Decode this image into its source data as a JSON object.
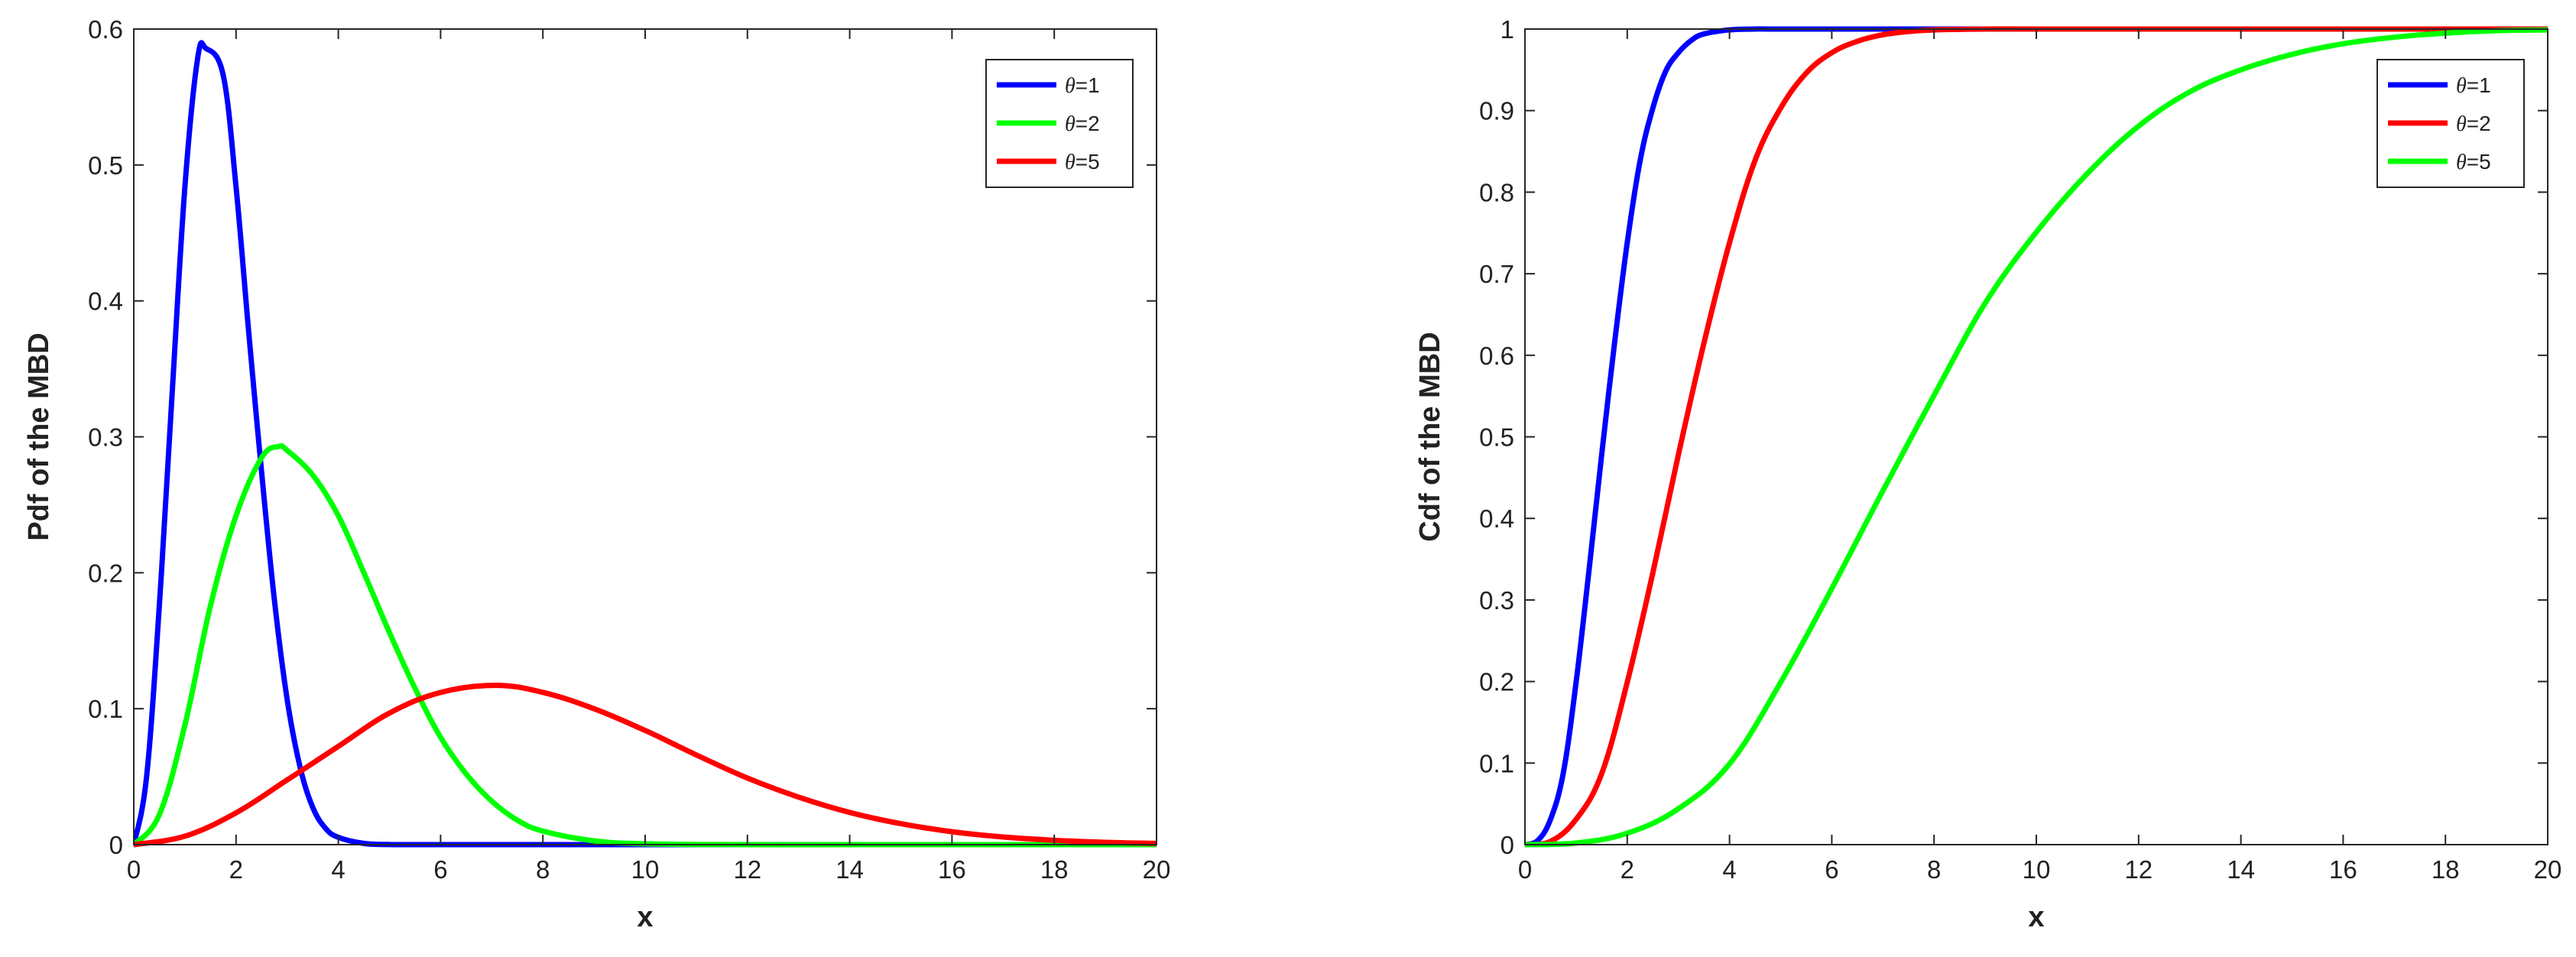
{
  "chart_data": [
    {
      "type": "line",
      "xlabel": "x",
      "ylabel": "Pdf of the MBD",
      "xlim": [
        0,
        20
      ],
      "ylim": [
        0,
        0.6
      ],
      "xticks": [
        "0",
        "2",
        "4",
        "6",
        "8",
        "10",
        "12",
        "14",
        "16",
        "18",
        "20"
      ],
      "yticks": [
        "0",
        "0.1",
        "0.2",
        "0.3",
        "0.4",
        "0.5",
        "0.6"
      ],
      "grid": false,
      "legend_position": "top-right",
      "series": [
        {
          "name": "θ=1",
          "color": "#0000ff",
          "x": [
            0,
            0.25,
            0.5,
            0.75,
            1.0,
            1.25,
            1.414,
            1.75,
            2.0,
            2.25,
            2.5,
            2.75,
            3.0,
            3.25,
            3.5,
            3.75,
            4.0,
            4.5,
            5.0,
            6.0,
            8.0,
            10.0,
            14.0,
            20.0
          ],
          "y": [
            0,
            0.0497,
            0.176,
            0.3318,
            0.4839,
            0.5787,
            0.5857,
            0.5659,
            0.4839,
            0.3761,
            0.274,
            0.18,
            0.1067,
            0.0574,
            0.0274,
            0.012,
            0.0054,
            0.0009,
            0.0001,
            0,
            0,
            0,
            0,
            0
          ]
        },
        {
          "name": "θ=2",
          "color": "#00ff00",
          "x": [
            0,
            0.5,
            1.0,
            1.5,
            2.0,
            2.5,
            2.83,
            3.0,
            3.5,
            4.0,
            4.5,
            5.0,
            5.5,
            6.0,
            6.5,
            7.0,
            7.5,
            8.0,
            9.0,
            10.0,
            12.0,
            14.0,
            17.0,
            20.0
          ],
          "y": [
            0,
            0.022,
            0.088,
            0.1758,
            0.242,
            0.2847,
            0.2929,
            0.29,
            0.2719,
            0.242,
            0.2,
            0.156,
            0.115,
            0.079,
            0.052,
            0.032,
            0.018,
            0.01,
            0.0028,
            0.0006,
            0,
            0,
            0,
            0
          ]
        },
        {
          "name": "θ=5",
          "color": "#ff0000",
          "x": [
            0,
            1,
            2,
            3,
            4,
            5,
            6,
            7.07,
            8,
            9,
            10,
            11,
            12,
            13,
            14,
            15,
            16,
            17,
            18,
            19,
            20
          ],
          "y": [
            0,
            0.0062,
            0.0234,
            0.0476,
            0.0723,
            0.0968,
            0.112,
            0.1172,
            0.112,
            0.1,
            0.084,
            0.066,
            0.049,
            0.035,
            0.0237,
            0.0154,
            0.0095,
            0.0056,
            0.0032,
            0.0017,
            0.0009
          ]
        }
      ]
    },
    {
      "type": "line",
      "xlabel": "x",
      "ylabel": "Cdf of the MBD",
      "xlim": [
        0,
        20
      ],
      "ylim": [
        0,
        1
      ],
      "xticks": [
        "0",
        "2",
        "4",
        "6",
        "8",
        "10",
        "12",
        "14",
        "16",
        "18",
        "20"
      ],
      "yticks": [
        "0",
        "0.1",
        "0.2",
        "0.3",
        "0.4",
        "0.5",
        "0.6",
        "0.7",
        "0.8",
        "0.9",
        "1"
      ],
      "grid": false,
      "legend_position": "top-right",
      "series": [
        {
          "name": "θ=1",
          "color": "#0000ff",
          "x": [
            0,
            0.25,
            0.5,
            0.75,
            1.0,
            1.25,
            1.5,
            1.75,
            2.0,
            2.25,
            2.5,
            2.75,
            3.0,
            3.25,
            3.5,
            4.0,
            4.5,
            5.0,
            8.0,
            12.0,
            20.0
          ],
          "y": [
            0,
            0.005,
            0.031,
            0.088,
            0.199,
            0.335,
            0.478,
            0.614,
            0.738,
            0.838,
            0.903,
            0.948,
            0.971,
            0.986,
            0.994,
            0.999,
            1.0,
            1.0,
            1.0,
            1.0,
            1.0
          ]
        },
        {
          "name": "θ=2",
          "color": "#ff0000",
          "x": [
            0,
            0.5,
            1.0,
            1.5,
            2.0,
            2.5,
            3.0,
            3.5,
            4.0,
            4.5,
            5.0,
            5.5,
            6.0,
            6.5,
            7.0,
            7.5,
            8.0,
            9.0,
            10.0,
            14.0,
            20.0
          ],
          "y": [
            0,
            0.004,
            0.031,
            0.087,
            0.199,
            0.333,
            0.478,
            0.615,
            0.738,
            0.839,
            0.903,
            0.946,
            0.971,
            0.985,
            0.993,
            0.997,
            0.999,
            1.0,
            1.0,
            1.0,
            1.0
          ]
        },
        {
          "name": "θ=5",
          "color": "#00ff00",
          "x": [
            0,
            1,
            2,
            3,
            4,
            5,
            6,
            7,
            8,
            9,
            10,
            11,
            12,
            13,
            14,
            15,
            16,
            17,
            18,
            19,
            20
          ],
          "y": [
            0,
            0.002,
            0.014,
            0.044,
            0.099,
            0.199,
            0.314,
            0.434,
            0.551,
            0.664,
            0.751,
            0.823,
            0.881,
            0.923,
            0.95,
            0.969,
            0.982,
            0.99,
            0.995,
            0.998,
            0.999
          ]
        }
      ]
    }
  ]
}
